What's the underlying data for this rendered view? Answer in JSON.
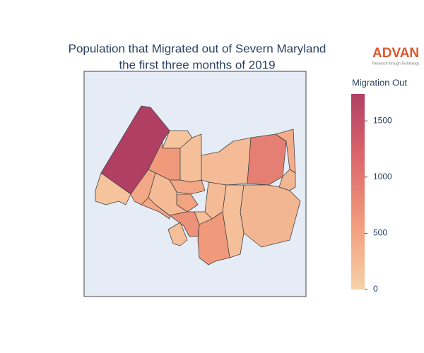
{
  "chart_data": {
    "type": "choropleth",
    "title": [
      "Population that Migrated out of Severn Maryland",
      "the first three months of 2019"
    ],
    "colorbar_title": "Migration Out",
    "zlim": [
      0,
      1740
    ],
    "zticks": [
      0,
      500,
      1000,
      1500
    ],
    "colorscale": [
      "#f6d2a9",
      "#f19c7c",
      "#dd686c",
      "#b13f64"
    ],
    "values": [
      1740,
      150,
      450,
      150,
      600,
      200,
      250,
      900,
      400,
      300,
      300,
      200,
      250,
      200,
      600,
      450,
      450,
      500,
      250,
      700,
      200
    ],
    "logo": {
      "name": "ADVAN",
      "tagline": "Research through Technology"
    }
  }
}
